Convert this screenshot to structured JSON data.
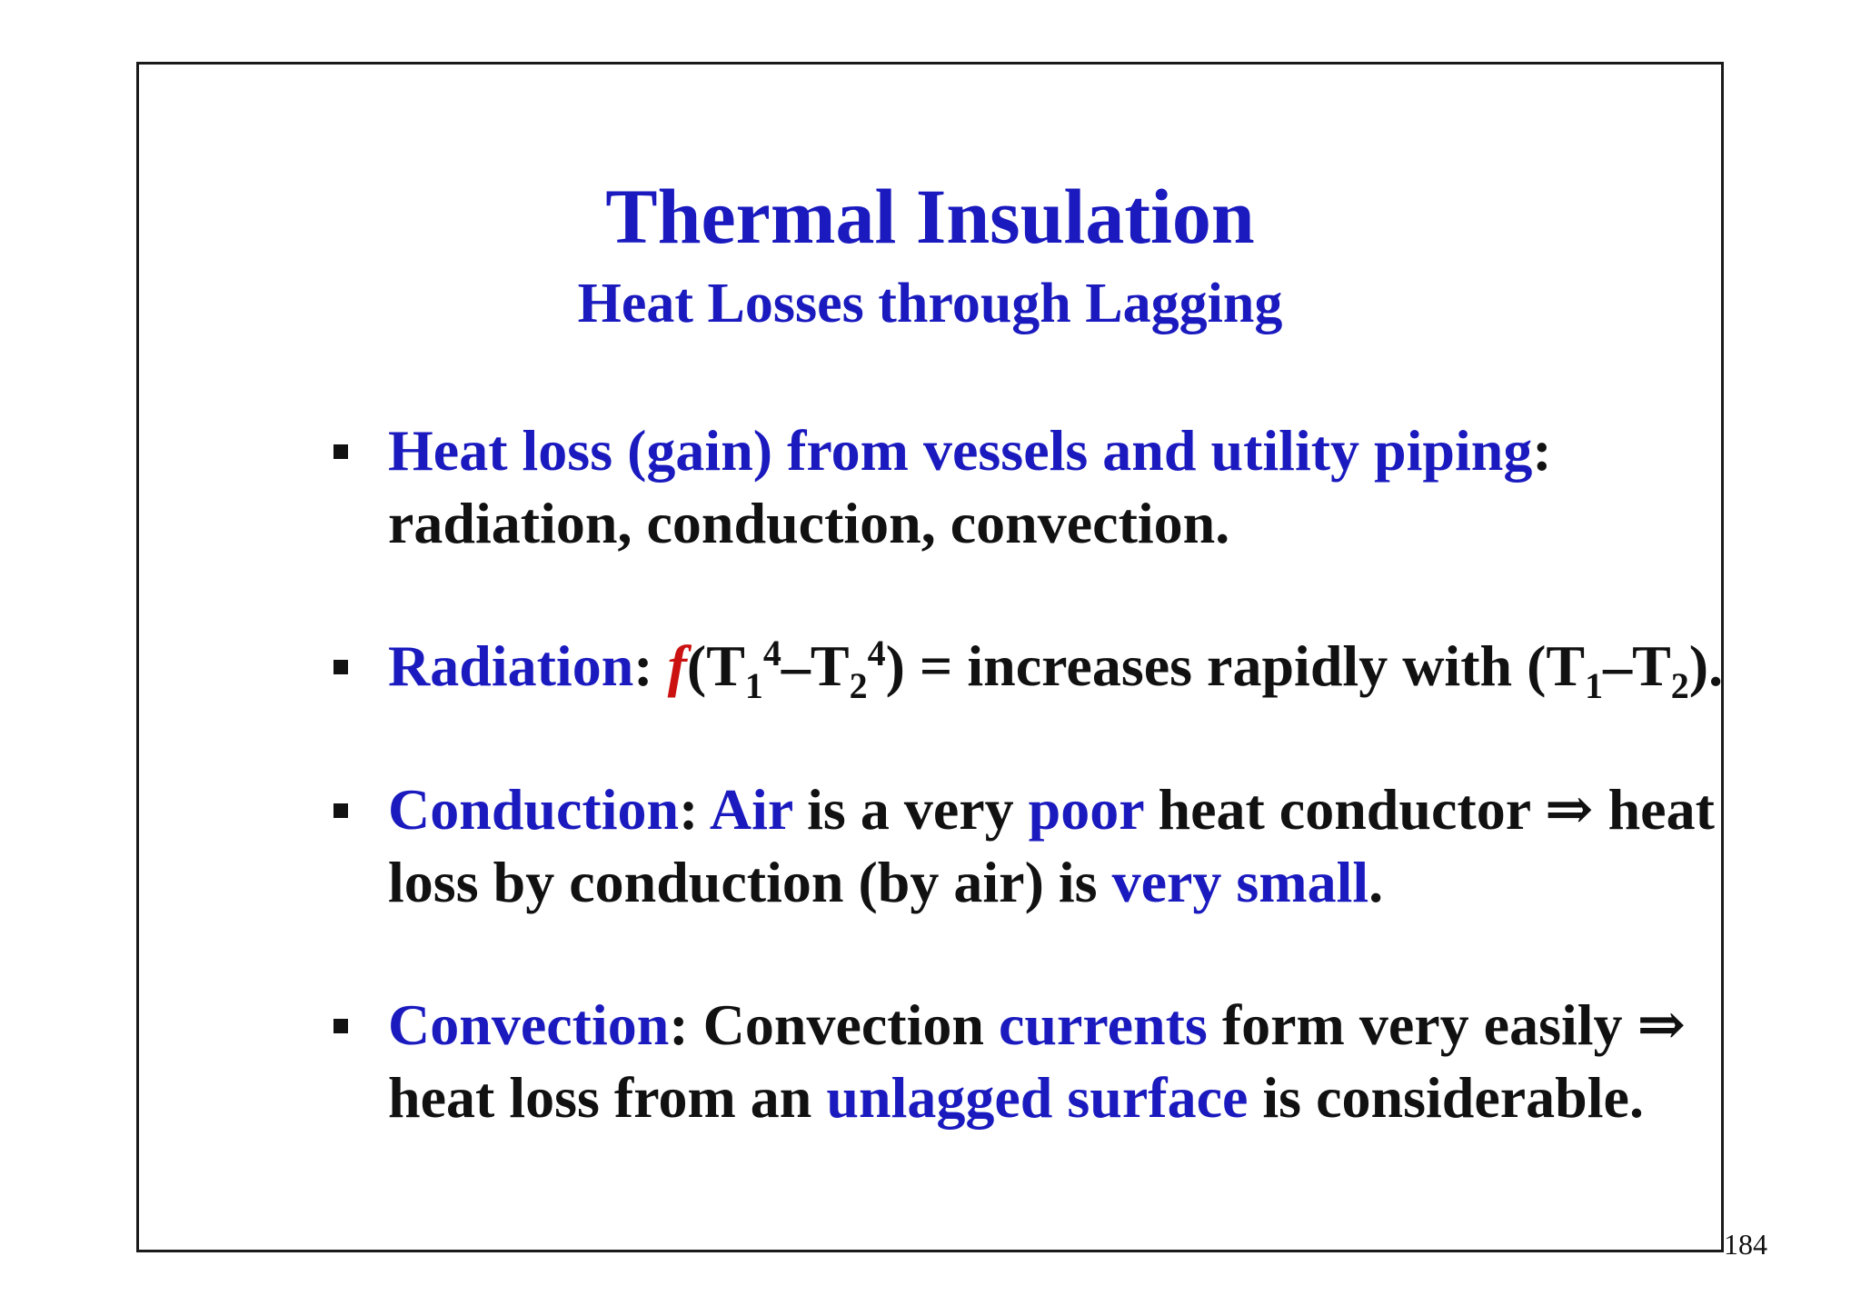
{
  "slide": {
    "title": "Thermal Insulation",
    "subtitle": "Heat Losses through Lagging",
    "page_number": "184"
  },
  "bullets": [
    {
      "lead": "Heat loss (gain) from vessels and utility piping",
      "colon": ":",
      "line2": "radiation, conduction, convection."
    },
    {
      "lead": "Radiation",
      "colon": ":",
      "func": "f",
      "open": "(T",
      "sub1": "1",
      "sup1": "4",
      "dash": "–T",
      "sub2": "2",
      "sup2": "4",
      "close": ") = increases rapidly with (T",
      "sub3": "1",
      "dash2": "–T",
      "sub4": "2",
      "end": ")."
    },
    {
      "lead": "Conduction",
      "colon": ": ",
      "air": "Air",
      "t1": " is a very ",
      "poor": "poor",
      "t2": " heat conductor ⇒ heat loss by conduction (by air) is ",
      "very_small": "very small",
      "end": "."
    },
    {
      "lead": "Convection",
      "colon": ":",
      "t1": " Convection ",
      "currents": "currents",
      "t2": " form very easily ⇒ heat loss from an ",
      "unlagged": "unlagged surface",
      "end": " is considerable."
    }
  ]
}
